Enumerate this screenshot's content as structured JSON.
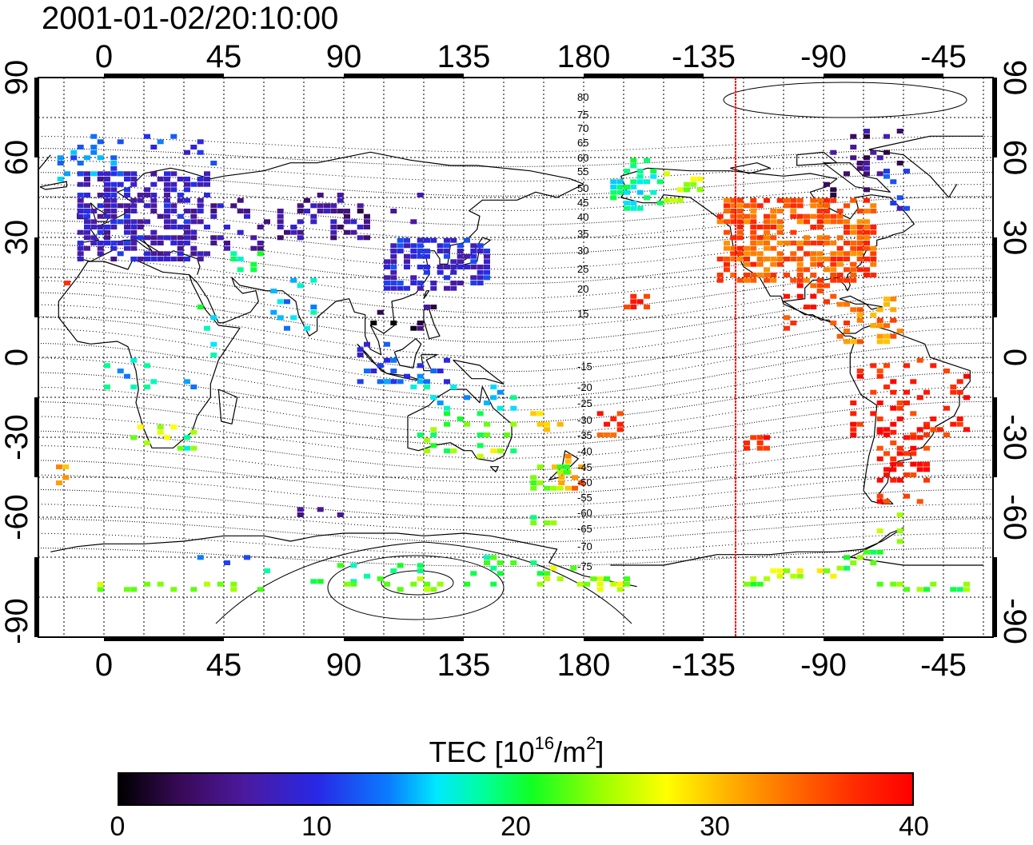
{
  "timestamp": "2001-01-02/20:10:00",
  "map": {
    "top_lon_ticks": [
      "0",
      "45",
      "90",
      "135",
      "180",
      "-135",
      "-90",
      "-45"
    ],
    "bottom_lon_ticks": [
      "0",
      "45",
      "90",
      "135",
      "180",
      "-135",
      "-90",
      "-45"
    ],
    "left_lat_ticks": [
      "90",
      "60",
      "30",
      "0",
      "-30",
      "-60",
      "-90"
    ],
    "right_lat_ticks": [
      "90",
      "60",
      "30",
      "0",
      "-30",
      "-60",
      "-90"
    ],
    "terminator_marker_color": "#ff0000",
    "contour_labels_north": [
      "80",
      "75",
      "70",
      "65",
      "60",
      "55",
      "50",
      "45",
      "40",
      "35",
      "30",
      "25",
      "20",
      "15"
    ],
    "contour_labels_south": [
      "-15",
      "-20",
      "-25",
      "-30",
      "-35",
      "-40",
      "-45",
      "-50",
      "-55",
      "-60",
      "-65",
      "-70",
      "-75"
    ]
  },
  "colorbar": {
    "title_prefix": "TEC  [10",
    "title_sup1": "16",
    "title_mid": "/m",
    "title_sup2": "2",
    "title_suffix": "]",
    "ticks": [
      "0",
      "10",
      "20",
      "30",
      "40"
    ],
    "range": [
      0,
      40
    ]
  }
}
